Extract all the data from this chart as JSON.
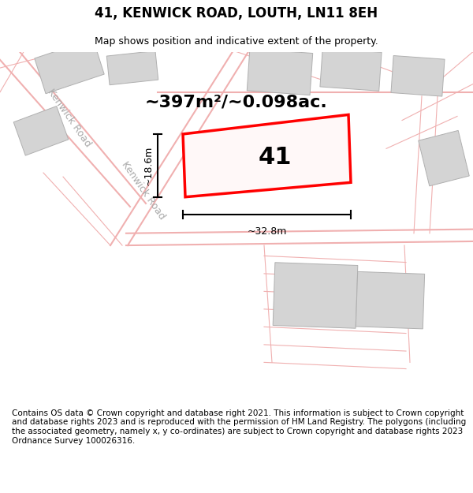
{
  "title": "41, KENWICK ROAD, LOUTH, LN11 8EH",
  "subtitle": "Map shows position and indicative extent of the property.",
  "area_text": "~397m²/~0.098ac.",
  "width_label": "~32.8m",
  "height_label": "~18.6m",
  "plot_number": "41",
  "footer_text": "Contains OS data © Crown copyright and database right 2021. This information is subject to Crown copyright and database rights 2023 and is reproduced with the permission of HM Land Registry. The polygons (including the associated geometry, namely x, y co-ordinates) are subject to Crown copyright and database rights 2023 Ordnance Survey 100026316.",
  "bg_color": "#ffffff",
  "light_gray": "#d4d4d4",
  "light_red_road": "#f0b0b0",
  "red_plot": "#ff0000",
  "road_label_color": "#aaaaaa",
  "title_fontsize": 12,
  "subtitle_fontsize": 9,
  "area_fontsize": 16,
  "plot_num_fontsize": 22,
  "measurement_fontsize": 9,
  "footer_fontsize": 7.5,
  "figsize": [
    6.0,
    6.25
  ],
  "dpi": 100
}
